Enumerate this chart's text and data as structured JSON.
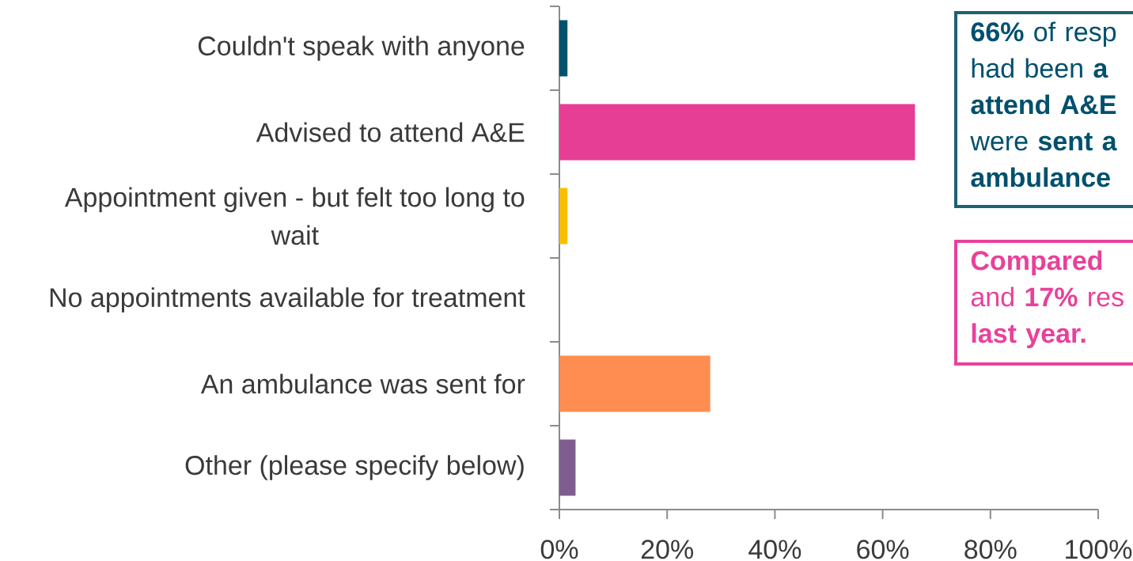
{
  "chart_data": {
    "type": "bar",
    "orientation": "horizontal",
    "categories": [
      "Couldn't speak with anyone",
      "Advised to attend A&E",
      "Appointment given - but felt too long to wait",
      "No appointments available for treatment",
      "An ambulance was sent for",
      "Other (please specify below)"
    ],
    "values": [
      1.5,
      66,
      1.5,
      0,
      28,
      3
    ],
    "colors": [
      "#00526e",
      "#e63e94",
      "#f9be00",
      "#ff8c50",
      "#ff8c50",
      "#7f5d90"
    ],
    "xlim": [
      0,
      100
    ],
    "xticks": [
      {
        "value": 0,
        "label": "0%"
      },
      {
        "value": 20,
        "label": "20%"
      },
      {
        "value": 40,
        "label": "40%"
      },
      {
        "value": 60,
        "label": "60%"
      },
      {
        "value": 80,
        "label": "80%"
      },
      {
        "value": 100,
        "label": "100%"
      }
    ],
    "annotations": [
      "**66%** of resp had been **a** **attend A&E** were **sent a** **ambulance**",
      "**Compared** and **17%** res **last year.**"
    ]
  }
}
